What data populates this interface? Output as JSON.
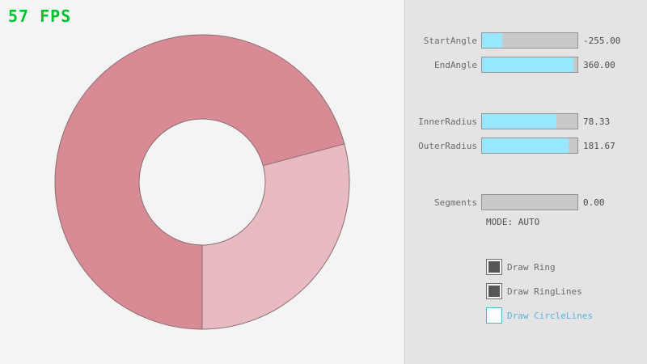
{
  "fps": {
    "label": "57 FPS",
    "color": "#00c330"
  },
  "ring": {
    "color_overlap": "#d98b95",
    "color_single": "#e8bac1",
    "outline": "#8a6d72"
  },
  "panel": {
    "accent_fill": "#97e8ff",
    "accent_blue": "#5bb2d9",
    "sliders": [
      {
        "label": "StartAngle",
        "value": "-255.00",
        "fill_pct": 21
      },
      {
        "label": "EndAngle",
        "value": "360.00",
        "fill_pct": 96
      },
      {
        "label": "InnerRadius",
        "value": "78.33",
        "fill_pct": 78
      },
      {
        "label": "OuterRadius",
        "value": "181.67",
        "fill_pct": 91
      },
      {
        "label": "Segments",
        "value": "0.00",
        "fill_pct": 0
      }
    ],
    "mode_text": "MODE: AUTO",
    "checkboxes": [
      {
        "label": "Draw Ring",
        "state": "checked"
      },
      {
        "label": "Draw RingLines",
        "state": "checked"
      },
      {
        "label": "Draw CircleLines",
        "state": "unchecked"
      }
    ]
  }
}
